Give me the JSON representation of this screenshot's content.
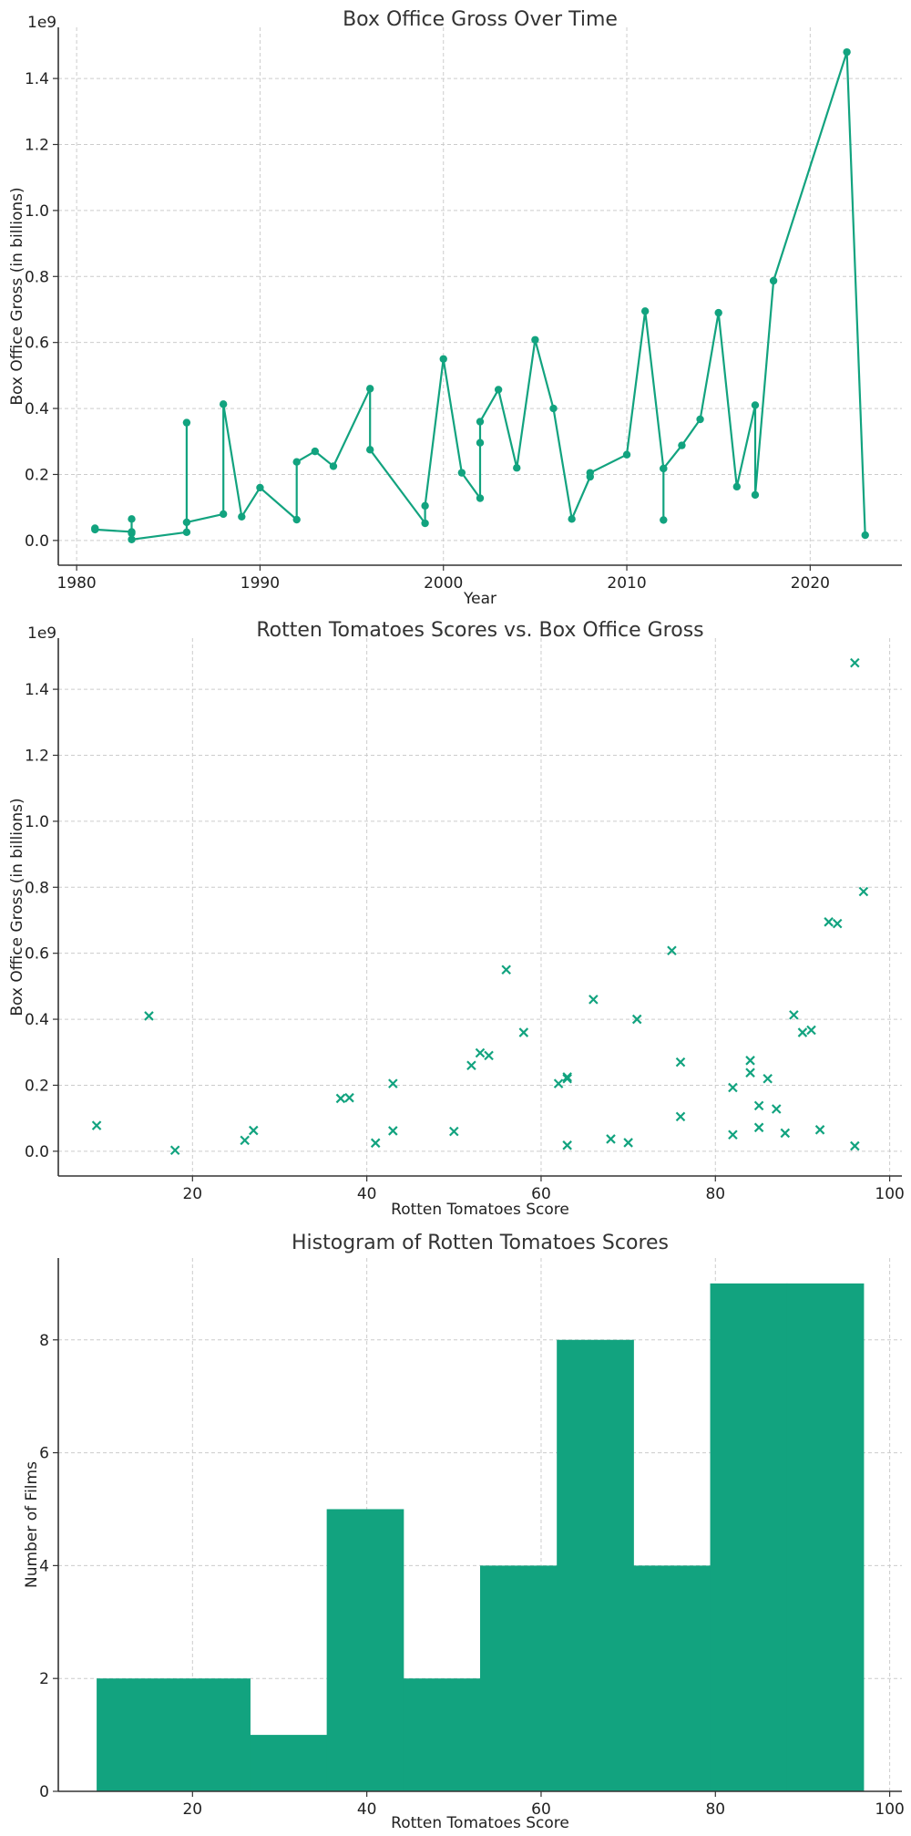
{
  "colors": {
    "series": "#12a37f",
    "grid": "#cccccc",
    "axis": "#333333"
  },
  "chart_data": [
    {
      "type": "line",
      "title": "Box Office Gross Over Time",
      "xlabel": "Year",
      "ylabel": "Box Office Gross (in billions)",
      "offset_label": "1e9",
      "xlim": [
        1979,
        2025
      ],
      "ylim": [
        -0.075,
        1.555
      ],
      "xticks": [
        1980,
        1990,
        2000,
        2010,
        2020
      ],
      "yticks": [
        0.0,
        0.2,
        0.4,
        0.6,
        0.8,
        1.0,
        1.2,
        1.4
      ],
      "ytick_labels": [
        "0.0",
        "0.2",
        "0.4",
        "0.6",
        "0.8",
        "1.0",
        "1.2",
        "1.4"
      ],
      "points": [
        [
          1981,
          0.037
        ],
        [
          1981,
          0.033
        ],
        [
          1983,
          0.026
        ],
        [
          1983,
          0.065
        ],
        [
          1983,
          0.022
        ],
        [
          1983,
          0.003
        ],
        [
          1986,
          0.025
        ],
        [
          1986,
          0.357
        ],
        [
          1986,
          0.055
        ],
        [
          1988,
          0.08
        ],
        [
          1988,
          0.413
        ],
        [
          1989,
          0.072
        ],
        [
          1990,
          0.16
        ],
        [
          1992,
          0.063
        ],
        [
          1992,
          0.238
        ],
        [
          1993,
          0.27
        ],
        [
          1994,
          0.225
        ],
        [
          1996,
          0.46
        ],
        [
          1996,
          0.275
        ],
        [
          1999,
          0.052
        ],
        [
          1999,
          0.105
        ],
        [
          2000,
          0.55
        ],
        [
          2001,
          0.205
        ],
        [
          2002,
          0.128
        ],
        [
          2002,
          0.296
        ],
        [
          2002,
          0.36
        ],
        [
          2003,
          0.457
        ],
        [
          2004,
          0.22
        ],
        [
          2005,
          0.608
        ],
        [
          2006,
          0.4
        ],
        [
          2007,
          0.065
        ],
        [
          2008,
          0.193
        ],
        [
          2008,
          0.205
        ],
        [
          2010,
          0.26
        ],
        [
          2011,
          0.695
        ],
        [
          2012,
          0.218
        ],
        [
          2012,
          0.062
        ],
        [
          2012,
          0.218
        ],
        [
          2013,
          0.288
        ],
        [
          2014,
          0.367
        ],
        [
          2015,
          0.69
        ],
        [
          2016,
          0.163
        ],
        [
          2017,
          0.41
        ],
        [
          2017,
          0.138
        ],
        [
          2018,
          0.787
        ],
        [
          2022,
          1.48
        ],
        [
          2023,
          0.016
        ]
      ]
    },
    {
      "type": "scatter",
      "title": "Rotten Tomatoes Scores vs. Box Office Gross",
      "xlabel": "Rotten Tomatoes Score",
      "ylabel": "Box Office Gross (in billions)",
      "offset_label": "1e9",
      "marker": "x",
      "xlim": [
        4.6,
        101.4
      ],
      "ylim": [
        -0.075,
        1.555
      ],
      "xticks": [
        20,
        40,
        60,
        80,
        100
      ],
      "yticks": [
        0.0,
        0.2,
        0.4,
        0.6,
        0.8,
        1.0,
        1.2,
        1.4
      ],
      "ytick_labels": [
        "0.0",
        "0.2",
        "0.4",
        "0.6",
        "0.8",
        "1.0",
        "1.2",
        "1.4"
      ],
      "points": [
        [
          9,
          0.078
        ],
        [
          15,
          0.41
        ],
        [
          18,
          0.003
        ],
        [
          26,
          0.033
        ],
        [
          27,
          0.063
        ],
        [
          37,
          0.16
        ],
        [
          38,
          0.162
        ],
        [
          41,
          0.025
        ],
        [
          43,
          0.205
        ],
        [
          43,
          0.062
        ],
        [
          50,
          0.06
        ],
        [
          52,
          0.26
        ],
        [
          53,
          0.298
        ],
        [
          54,
          0.29
        ],
        [
          56,
          0.55
        ],
        [
          58,
          0.36
        ],
        [
          62,
          0.205
        ],
        [
          63,
          0.22
        ],
        [
          63,
          0.225
        ],
        [
          63,
          0.018
        ],
        [
          66,
          0.46
        ],
        [
          68,
          0.037
        ],
        [
          70,
          0.026
        ],
        [
          71,
          0.4
        ],
        [
          75,
          0.608
        ],
        [
          76,
          0.27
        ],
        [
          76,
          0.105
        ],
        [
          82,
          0.193
        ],
        [
          82,
          0.05
        ],
        [
          84,
          0.275
        ],
        [
          84,
          0.238
        ],
        [
          85,
          0.138
        ],
        [
          85,
          0.072
        ],
        [
          86,
          0.22
        ],
        [
          87,
          0.128
        ],
        [
          88,
          0.055
        ],
        [
          89,
          0.413
        ],
        [
          90,
          0.36
        ],
        [
          91,
          0.367
        ],
        [
          92,
          0.065
        ],
        [
          93,
          0.695
        ],
        [
          94,
          0.69
        ],
        [
          96,
          1.48
        ],
        [
          96,
          0.016
        ],
        [
          97,
          0.787
        ]
      ]
    },
    {
      "type": "histogram",
      "title": "Histogram of Rotten Tomatoes Scores",
      "xlabel": "Rotten Tomatoes Score",
      "ylabel": "Number of Films",
      "xlim": [
        4.6,
        101.4
      ],
      "ylim": [
        0,
        9.45
      ],
      "xticks": [
        20,
        40,
        60,
        80,
        100
      ],
      "yticks": [
        0,
        2,
        4,
        6,
        8
      ],
      "bin_edges": [
        9.0,
        17.8,
        26.6,
        35.4,
        44.2,
        53.0,
        61.8,
        70.6,
        79.4,
        88.2,
        97.0
      ],
      "counts": [
        2,
        2,
        1,
        5,
        2,
        4,
        8,
        4,
        9,
        9
      ]
    }
  ]
}
